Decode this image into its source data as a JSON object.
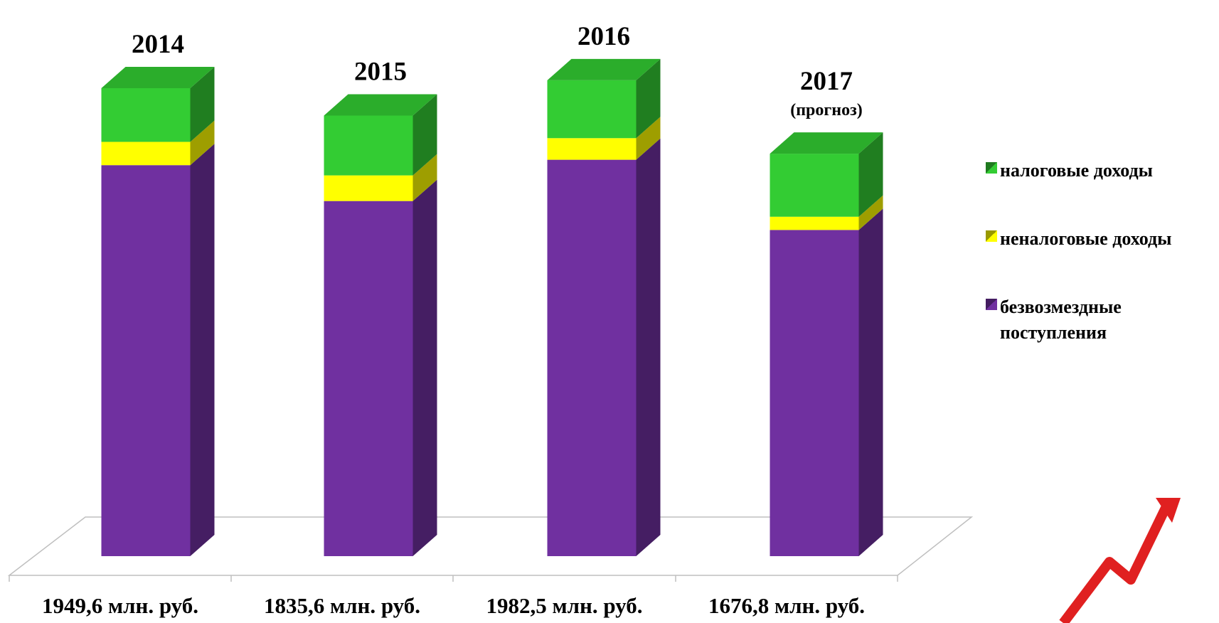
{
  "chart_data": {
    "type": "stacked-bar-3d",
    "categories": [
      "2014",
      "2015",
      "2016",
      "2017"
    ],
    "annotations": [
      {
        "category": "2017",
        "text": "(прогноз)"
      }
    ],
    "total_labels": [
      "1949,6 млн. руб.",
      "1835,6 млн. руб.",
      "1982,5 млн. руб.",
      "1676,8 млн. руб."
    ],
    "series": [
      {
        "name": "налоговые доходы",
        "color": "#33cc33",
        "values": [
          223.6,
          249.3,
          241.0,
          262.7
        ]
      },
      {
        "name": "неналоговые доходы",
        "color": "#ffff00",
        "values": [
          97.0,
          106.8,
          90.0,
          55.1
        ]
      },
      {
        "name": "безвозмездные поступления",
        "color": "#7030a0",
        "values": [
          1629.0,
          1479.5,
          1651.5,
          1359.0
        ]
      }
    ],
    "legend": "right"
  }
}
